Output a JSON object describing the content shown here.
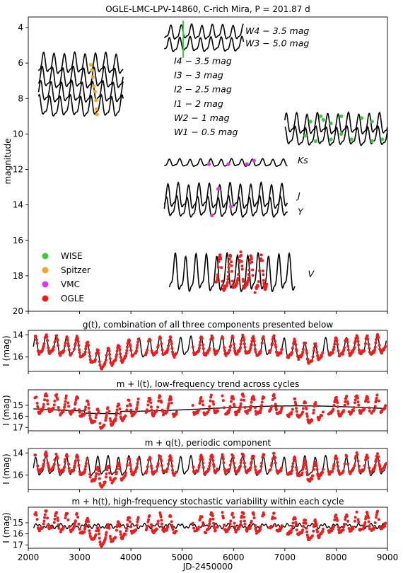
{
  "chart_data": [
    {
      "type": "scatter",
      "title": "OGLE-LMC-LPV-14860, C-rich Mira, P = 201.87 d",
      "xlabel": "",
      "ylabel": "magnitude",
      "xlim": [
        2000,
        9000
      ],
      "ylim": [
        20,
        3.4
      ],
      "y_inverted": true,
      "yticks": [
        4,
        6,
        8,
        10,
        12,
        14,
        16,
        18,
        20
      ],
      "legend": {
        "placement": "lower-left",
        "entries": [
          {
            "name": "WISE",
            "color": "#3cc83c"
          },
          {
            "name": "Spitzer",
            "color": "#f5a623"
          },
          {
            "name": "VMC",
            "color": "#e533e5"
          },
          {
            "name": "OGLE",
            "color": "#ee1c1c"
          }
        ]
      },
      "annotations": [
        {
          "text": "W4 − 3.5 mag",
          "x": 6230,
          "y": 4.2
        },
        {
          "text": "W3 − 5.0 mag",
          "x": 6230,
          "y": 4.9
        },
        {
          "text": "I4 − 3.5 mag",
          "x": 4840,
          "y": 5.9
        },
        {
          "text": "I3 − 3 mag",
          "x": 4840,
          "y": 6.7
        },
        {
          "text": "I2 − 2.5 mag",
          "x": 4840,
          "y": 7.5
        },
        {
          "text": "I1 − 2 mag",
          "x": 4840,
          "y": 8.3
        },
        {
          "text": "W2 − 1 mag",
          "x": 4840,
          "y": 9.1
        },
        {
          "text": "W1 − 0.5 mag",
          "x": 4840,
          "y": 9.9
        },
        {
          "text": "Ks",
          "x": 7250,
          "y": 11.5
        },
        {
          "text": "J",
          "x": 7250,
          "y": 13.5
        },
        {
          "text": "Y",
          "x": 7250,
          "y": 14.4
        },
        {
          "text": "V",
          "x": 7450,
          "y": 17.9
        }
      ],
      "series": [
        {
          "name": "W4 − 3.5 mag",
          "kind": "line",
          "color": "#000000",
          "x_range": [
            4650,
            6200
          ],
          "center": 4.3,
          "amp": 0.35,
          "period": 201.87
        },
        {
          "name": "W3 − 5.0 mag",
          "kind": "line",
          "color": "#000000",
          "x_range": [
            4650,
            6200
          ],
          "center": 5.0,
          "amp": 0.35,
          "period": 201.87
        },
        {
          "name": "I4 − 3.5 mag",
          "kind": "line",
          "color": "#000000",
          "x_range": [
            2200,
            3850
          ],
          "center": 6.1,
          "amp": 0.5,
          "period": 201.87
        },
        {
          "name": "I3 − 3 mag",
          "kind": "line",
          "color": "#000000",
          "x_range": [
            2200,
            3850
          ],
          "center": 6.9,
          "amp": 0.5,
          "period": 201.87
        },
        {
          "name": "I2 − 2.5 mag",
          "kind": "line",
          "color": "#000000",
          "x_range": [
            2200,
            3850
          ],
          "center": 7.7,
          "amp": 0.5,
          "period": 201.87
        },
        {
          "name": "I1 − 2 mag",
          "kind": "line",
          "color": "#000000",
          "x_range": [
            2200,
            3850
          ],
          "center": 8.5,
          "amp": 0.5,
          "period": 201.87
        },
        {
          "name": "W2 − 1 mag",
          "kind": "line",
          "color": "#000000",
          "x_range": [
            7000,
            9000
          ],
          "center": 9.5,
          "amp": 0.5,
          "period": 201.87
        },
        {
          "name": "W1 − 0.5 mag",
          "kind": "line",
          "color": "#000000",
          "x_range": [
            7000,
            9000
          ],
          "center": 10.2,
          "amp": 0.45,
          "period": 201.87
        },
        {
          "name": "Ks",
          "kind": "line",
          "color": "#000000",
          "x_range": [
            4650,
            7050
          ],
          "center": 11.65,
          "amp": 0.18,
          "period": 201.87
        },
        {
          "name": "J",
          "kind": "line",
          "color": "#000000",
          "x_range": [
            4650,
            7050
          ],
          "center": 13.6,
          "amp": 0.6,
          "period": 201.87
        },
        {
          "name": "Y",
          "kind": "line",
          "color": "#000000",
          "x_range": [
            4650,
            7050
          ],
          "center": 14.2,
          "amp": 0.5,
          "period": 201.87
        },
        {
          "name": "V",
          "kind": "line",
          "color": "#000000",
          "x_range": [
            4750,
            7200
          ],
          "center": 18.0,
          "amp": 0.9,
          "period": 201.87
        },
        {
          "name": "Spitzer",
          "kind": "points",
          "color": "#f5a623",
          "points": [
            [
              3220,
              6.1
            ],
            [
              3240,
              6.4
            ],
            [
              3260,
              6.8
            ],
            [
              3280,
              7.3
            ],
            [
              3300,
              7.6
            ],
            [
              3320,
              8.1
            ],
            [
              3330,
              8.6
            ],
            [
              3340,
              8.9
            ]
          ]
        },
        {
          "name": "VMC",
          "kind": "points",
          "color": "#e533e5",
          "points": [
            [
              5520,
              11.7
            ],
            [
              5900,
              11.7
            ],
            [
              6260,
              11.7
            ],
            [
              6400,
              11.5
            ],
            [
              5580,
              14.6
            ],
            [
              5700,
              13.1
            ],
            [
              5950,
              14.1
            ]
          ]
        },
        {
          "name": "WISE",
          "kind": "points",
          "color": "#3cc83c",
          "points": [
            [
              7500,
              9.3
            ],
            [
              7700,
              9.0
            ],
            [
              7750,
              9.2
            ],
            [
              7900,
              9.4
            ],
            [
              8100,
              9.0
            ],
            [
              8500,
              9.1
            ],
            [
              8700,
              9.3
            ],
            [
              7400,
              10.1
            ],
            [
              7600,
              10.4
            ],
            [
              7900,
              10.3
            ],
            [
              8100,
              10.0
            ],
            [
              8300,
              10.3
            ],
            [
              8700,
              10.4
            ],
            [
              8900,
              10.3
            ]
          ]
        },
        {
          "name": "OGLE",
          "kind": "points",
          "color": "#ee1c1c",
          "x_range": [
            5650,
            6650
          ],
          "center": 18.0,
          "amp": 0.9,
          "period": 201.87
        }
      ]
    },
    {
      "type": "line",
      "title": "g(t), combination of all three components presented below",
      "xlabel": "",
      "ylabel": "I (mag)",
      "xlim": [
        2000,
        9000
      ],
      "ylim": [
        17.3,
        13.6
      ],
      "y_inverted": true,
      "yticks": [
        14,
        16
      ],
      "series": [
        {
          "name": "",
          "kind": "line",
          "color": "#000000"
        },
        {
          "name": "",
          "kind": "points",
          "color": "#ee1c1c"
        }
      ]
    },
    {
      "type": "line",
      "title": "m + l(t), low-frequency trend across cycles",
      "xlabel": "",
      "ylabel": "I (mag)",
      "xlim": [
        2000,
        9000
      ],
      "ylim": [
        17.3,
        13.6
      ],
      "y_inverted": true,
      "yticks": [
        15,
        16,
        17
      ],
      "series": [
        {
          "name": "",
          "kind": "line",
          "color": "#000000"
        },
        {
          "name": "",
          "kind": "points",
          "color": "#ee1c1c"
        }
      ]
    },
    {
      "type": "line",
      "title": "m + q(t), periodic component",
      "xlabel": "",
      "ylabel": "I (mag)",
      "xlim": [
        2000,
        9000
      ],
      "ylim": [
        17.3,
        13.6
      ],
      "y_inverted": true,
      "yticks": [
        14,
        16
      ],
      "series": [
        {
          "name": "",
          "kind": "line",
          "color": "#000000"
        },
        {
          "name": "",
          "kind": "points",
          "color": "#ee1c1c"
        }
      ]
    },
    {
      "type": "line",
      "title": "m + h(t), high-frequency stochastic variability within each cycle",
      "xlabel": "JD-2450000",
      "ylabel": "I (mag)",
      "xlim": [
        2000,
        9000
      ],
      "ylim": [
        17.3,
        13.6
      ],
      "y_inverted": true,
      "yticks": [
        15,
        16,
        17
      ],
      "xticks": [
        2000,
        3000,
        4000,
        5000,
        6000,
        7000,
        8000,
        9000
      ],
      "series": [
        {
          "name": "",
          "kind": "line",
          "color": "#000000"
        },
        {
          "name": "",
          "kind": "points",
          "color": "#ee1c1c"
        }
      ]
    }
  ],
  "light_curve": {
    "period": 201.87,
    "mean": 15.3,
    "amplitude": 0.75,
    "trend_knots": [
      [
        2100,
        15.0
      ],
      [
        2800,
        15.1
      ],
      [
        3200,
        15.6
      ],
      [
        3400,
        16.6
      ],
      [
        3700,
        15.9
      ],
      [
        4100,
        15.3
      ],
      [
        5000,
        15.2
      ],
      [
        6000,
        15.1
      ],
      [
        7000,
        15.2
      ],
      [
        7300,
        15.6
      ],
      [
        7500,
        15.9
      ],
      [
        7800,
        15.3
      ],
      [
        8500,
        15.1
      ],
      [
        9000,
        15.0
      ]
    ],
    "ogle_gaps": [
      [
        4150,
        4280
      ],
      [
        4900,
        5200
      ],
      [
        5700,
        5780
      ],
      [
        6600,
        6700
      ],
      [
        6950,
        7050
      ],
      [
        7750,
        7850
      ]
    ]
  }
}
